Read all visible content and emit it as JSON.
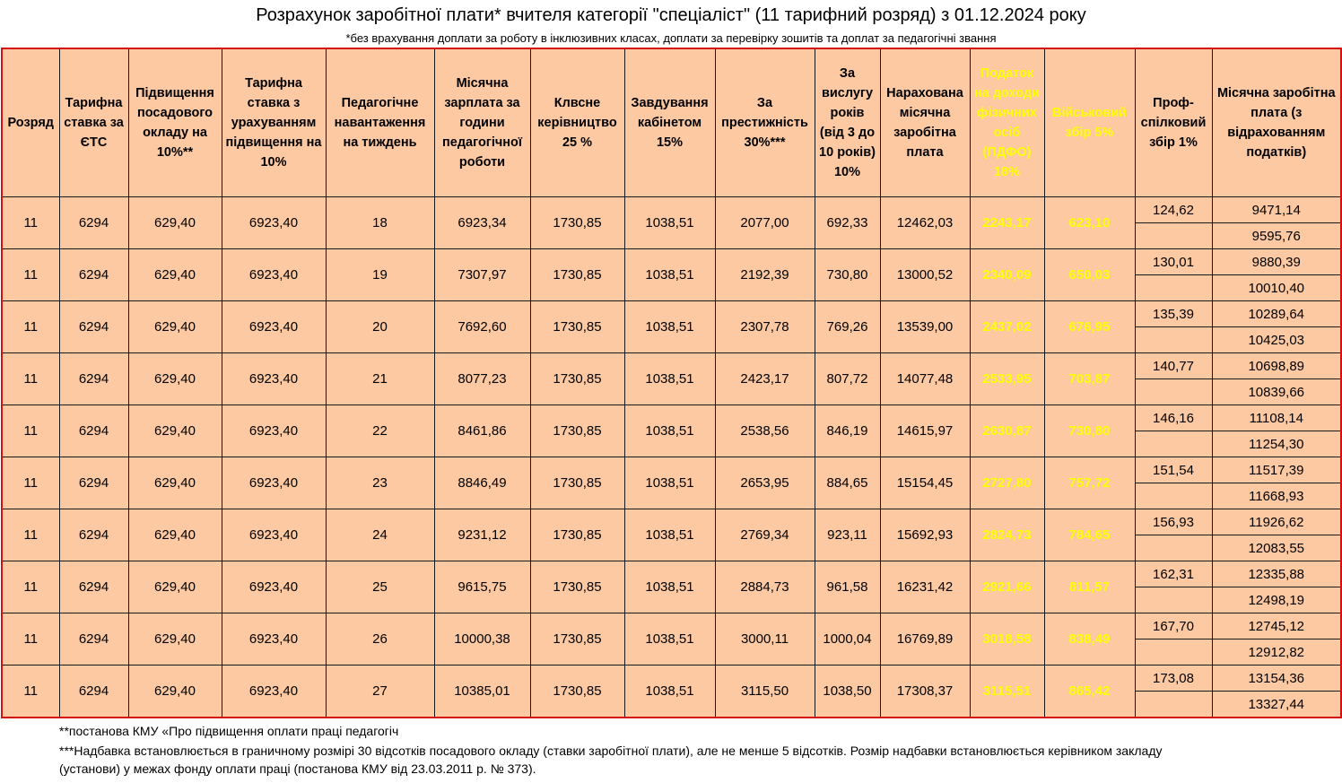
{
  "title": "Розрахунок заробітної плати* вчителя категорії \"спеціаліст\" (11 тарифний розряд) з 01.12.2024 року",
  "subtitle": "*без врахування доплати за роботу в інклюзивних класах, доплати за перевірку зошитів та доплат за педагогічні звання",
  "headers": [
    "Розряд",
    "Тарифна ставка за ЄТС",
    "Підвищення посадового окладу на 10%**",
    "Тарифна ставка з урахуванням підвищення на 10%",
    "Педагогічне навантаження на тиждень",
    "Місячна зарплата за години педагогічної роботи",
    "Клвсне керівництво 25 %",
    "Завдування кабінетом 15%",
    "За престижність 30%***",
    "За вислугу років (від 3 до 10 років) 10%",
    "Нарахована місячна заробітна плата",
    "Податок на доходи фізичних осіб (ПДФО) 18%",
    "Військовий збір 5%",
    "Проф-спілковий збір 1%",
    "Місячна заробітна плата (з відрахованням податків)"
  ],
  "rows": [
    {
      "rank": "11",
      "rate": "6294",
      "raise": "629,40",
      "rate_raised": "6923,40",
      "load": "18",
      "monthly": "6923,34",
      "class_lead": "1730,85",
      "cabinet": "1038,51",
      "prestige": "2077,00",
      "seniority": "692,33",
      "accrued": "12462,03",
      "pdfo": "2243,17",
      "military": "623,10",
      "union": "124,62",
      "net": "9471,14",
      "net_no_union": "9595,76"
    },
    {
      "rank": "11",
      "rate": "6294",
      "raise": "629,40",
      "rate_raised": "6923,40",
      "load": "19",
      "monthly": "7307,97",
      "class_lead": "1730,85",
      "cabinet": "1038,51",
      "prestige": "2192,39",
      "seniority": "730,80",
      "accrued": "13000,52",
      "pdfo": "2340,09",
      "military": "650,03",
      "union": "130,01",
      "net": "9880,39",
      "net_no_union": "10010,40"
    },
    {
      "rank": "11",
      "rate": "6294",
      "raise": "629,40",
      "rate_raised": "6923,40",
      "load": "20",
      "monthly": "7692,60",
      "class_lead": "1730,85",
      "cabinet": "1038,51",
      "prestige": "2307,78",
      "seniority": "769,26",
      "accrued": "13539,00",
      "pdfo": "2437,02",
      "military": "676,95",
      "union": "135,39",
      "net": "10289,64",
      "net_no_union": "10425,03"
    },
    {
      "rank": "11",
      "rate": "6294",
      "raise": "629,40",
      "rate_raised": "6923,40",
      "load": "21",
      "monthly": "8077,23",
      "class_lead": "1730,85",
      "cabinet": "1038,51",
      "prestige": "2423,17",
      "seniority": "807,72",
      "accrued": "14077,48",
      "pdfo": "2533,95",
      "military": "703,87",
      "union": "140,77",
      "net": "10698,89",
      "net_no_union": "10839,66"
    },
    {
      "rank": "11",
      "rate": "6294",
      "raise": "629,40",
      "rate_raised": "6923,40",
      "load": "22",
      "monthly": "8461,86",
      "class_lead": "1730,85",
      "cabinet": "1038,51",
      "prestige": "2538,56",
      "seniority": "846,19",
      "accrued": "14615,97",
      "pdfo": "2630,87",
      "military": "730,80",
      "union": "146,16",
      "net": "11108,14",
      "net_no_union": "11254,30"
    },
    {
      "rank": "11",
      "rate": "6294",
      "raise": "629,40",
      "rate_raised": "6923,40",
      "load": "23",
      "monthly": "8846,49",
      "class_lead": "1730,85",
      "cabinet": "1038,51",
      "prestige": "2653,95",
      "seniority": "884,65",
      "accrued": "15154,45",
      "pdfo": "2727,80",
      "military": "757,72",
      "union": "151,54",
      "net": "11517,39",
      "net_no_union": "11668,93"
    },
    {
      "rank": "11",
      "rate": "6294",
      "raise": "629,40",
      "rate_raised": "6923,40",
      "load": "24",
      "monthly": "9231,12",
      "class_lead": "1730,85",
      "cabinet": "1038,51",
      "prestige": "2769,34",
      "seniority": "923,11",
      "accrued": "15692,93",
      "pdfo": "2824,73",
      "military": "784,65",
      "union": "156,93",
      "net": "11926,62",
      "net_no_union": "12083,55"
    },
    {
      "rank": "11",
      "rate": "6294",
      "raise": "629,40",
      "rate_raised": "6923,40",
      "load": "25",
      "monthly": "9615,75",
      "class_lead": "1730,85",
      "cabinet": "1038,51",
      "prestige": "2884,73",
      "seniority": "961,58",
      "accrued": "16231,42",
      "pdfo": "2921,66",
      "military": "811,57",
      "union": "162,31",
      "net": "12335,88",
      "net_no_union": "12498,19"
    },
    {
      "rank": "11",
      "rate": "6294",
      "raise": "629,40",
      "rate_raised": "6923,40",
      "load": "26",
      "monthly": "10000,38",
      "class_lead": "1730,85",
      "cabinet": "1038,51",
      "prestige": "3000,11",
      "seniority": "1000,04",
      "accrued": "16769,89",
      "pdfo": "3018,58",
      "military": "838,49",
      "union": "167,70",
      "net": "12745,12",
      "net_no_union": "12912,82"
    },
    {
      "rank": "11",
      "rate": "6294",
      "raise": "629,40",
      "rate_raised": "6923,40",
      "load": "27",
      "monthly": "10385,01",
      "class_lead": "1730,85",
      "cabinet": "1038,51",
      "prestige": "3115,50",
      "seniority": "1038,50",
      "accrued": "17308,37",
      "pdfo": "3115,51",
      "military": "865,42",
      "union": "173,08",
      "net": "13154,36",
      "net_no_union": "13327,44"
    }
  ],
  "footnotes": [
    "**постанова КМУ «Про підвищення оплати праці педагогіч",
    "***Надбавка встановлюється  в  граничному  розмірі 30 відсотків посадового  окладу  (ставки  заробітної  плати),  але  не  менше 5 відсотків.  Розмір  надбавки встановлюється керівником закладу (установи) у  межах  фонду  оплати  праці (постанова КМУ від 23.03.2011 р. № 373)."
  ],
  "colors": {
    "peach": "#fcc9a2",
    "tax_blue": "#0b6fbf",
    "military_cyan": "#00b0f0",
    "yellow": "#ffff00",
    "green": "#1aa34a",
    "border_red": "#d41010"
  }
}
